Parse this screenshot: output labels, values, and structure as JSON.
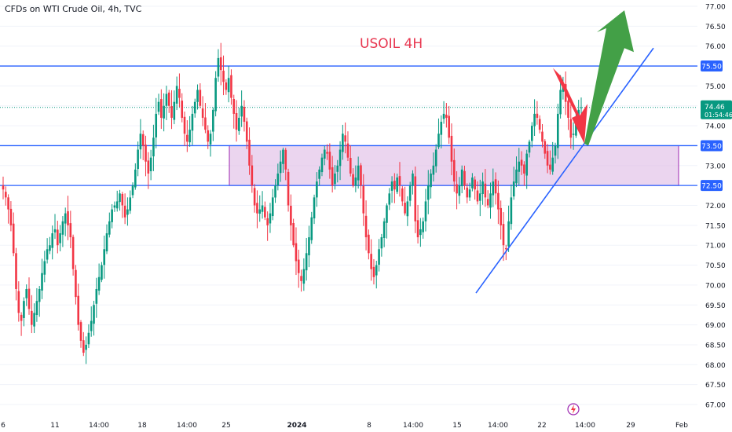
{
  "header": {
    "symbol_text": "CFDs on WTI Crude Oil, 4h, TVC"
  },
  "title": "USOIL 4H",
  "price_badge": {
    "price": "74.46",
    "countdown": "01:54:46",
    "color": "#089981"
  },
  "colors": {
    "up": "#089981",
    "down": "#f23645",
    "level_line": "#2962ff",
    "zone_fill": "#e1bee7",
    "zone_border": "#9c27b0",
    "arrow_up": "#43a047",
    "arrow_down": "#f23645",
    "grid": "#f0f3fa",
    "axis_text": "#131722"
  },
  "chart_data": {
    "type": "candlestick",
    "title": "USOIL 4H",
    "ylim": [
      67.0,
      77.0
    ],
    "y_ticks": [
      "77.00",
      "76.50",
      "76.00",
      "75.50",
      "75.00",
      "74.50",
      "74.00",
      "73.50",
      "73.00",
      "72.50",
      "72.00",
      "71.50",
      "71.00",
      "70.50",
      "70.00",
      "69.50",
      "69.00",
      "68.50",
      "68.00",
      "67.50",
      "67.00"
    ],
    "x_ticks": [
      "6",
      "11",
      "14:00",
      "18",
      "14:00",
      "25",
      "2024",
      "14:00",
      "8",
      "14:00",
      "15",
      "14:00",
      "22",
      "14:00",
      "29",
      "Feb"
    ],
    "levels": [
      {
        "value": 75.5,
        "label": "75.50"
      },
      {
        "value": 73.5,
        "label": "73.50"
      },
      {
        "value": 72.5,
        "label": "72.50"
      }
    ],
    "zone": {
      "from": 72.5,
      "to": 73.5
    },
    "trendline": {
      "from": 69.8,
      "to": 75.95
    },
    "current_price": 74.46,
    "closes": [
      72.4,
      72.2,
      71.9,
      71.5,
      70.8,
      69.9,
      69.3,
      69.1,
      69.6,
      69.9,
      69.4,
      69.0,
      69.3,
      69.6,
      69.9,
      70.3,
      70.6,
      70.9,
      71.0,
      71.3,
      71.4,
      71.0,
      71.3,
      71.6,
      71.8,
      71.5,
      71.2,
      70.4,
      69.7,
      69.0,
      68.6,
      68.3,
      68.5,
      68.8,
      69.1,
      69.5,
      69.9,
      70.2,
      70.5,
      70.9,
      71.3,
      71.6,
      71.9,
      72.0,
      72.1,
      72.3,
      72.0,
      71.7,
      71.9,
      72.2,
      72.5,
      72.9,
      73.4,
      73.8,
      73.5,
      73.1,
      72.8,
      73.2,
      73.7,
      74.3,
      74.6,
      74.2,
      74.5,
      74.8,
      74.5,
      74.2,
      74.6,
      75.0,
      74.7,
      74.2,
      73.8,
      73.6,
      73.9,
      74.3,
      74.6,
      74.9,
      74.5,
      74.2,
      73.9,
      73.6,
      73.8,
      74.4,
      75.2,
      75.7,
      75.4,
      75.1,
      74.9,
      75.2,
      74.7,
      74.3,
      73.9,
      74.2,
      74.5,
      74.1,
      73.6,
      73.0,
      72.5,
      72.0,
      71.8,
      71.9,
      72.0,
      71.7,
      71.5,
      71.8,
      72.2,
      72.5,
      72.8,
      73.1,
      73.4,
      72.9,
      72.0,
      71.5,
      71.0,
      70.6,
      70.3,
      70.1,
      70.4,
      70.8,
      71.2,
      71.7,
      72.2,
      72.6,
      72.9,
      73.2,
      73.4,
      73.3,
      72.9,
      72.5,
      72.8,
      73.0,
      73.4,
      73.8,
      73.6,
      73.2,
      72.8,
      72.5,
      72.7,
      73.0,
      72.5,
      71.8,
      71.2,
      70.8,
      70.4,
      70.2,
      70.5,
      70.9,
      71.2,
      71.6,
      72.0,
      72.3,
      72.6,
      72.4,
      72.7,
      72.5,
      72.1,
      71.8,
      72.1,
      72.5,
      72.8,
      71.6,
      71.2,
      71.4,
      71.6,
      72.1,
      72.5,
      72.8,
      73.0,
      73.4,
      73.8,
      74.1,
      74.3,
      74.2,
      73.7,
      73.1,
      72.6,
      72.3,
      72.5,
      72.9,
      72.5,
      72.2,
      72.4,
      72.7,
      72.4,
      72.1,
      72.3,
      72.6,
      72.2,
      72.0,
      72.3,
      72.6,
      72.3,
      71.9,
      71.5,
      71.0,
      70.9,
      71.6,
      72.2,
      72.6,
      72.9,
      73.1,
      73.0,
      72.8,
      73.3,
      73.6,
      74.0,
      74.3,
      74.2,
      73.9,
      73.6,
      73.3,
      73.0,
      72.9,
      73.2,
      73.5,
      74.3,
      74.9,
      75.0,
      74.6,
      74.2,
      73.7,
      73.8,
      74.1,
      74.4,
      74.46
    ]
  }
}
